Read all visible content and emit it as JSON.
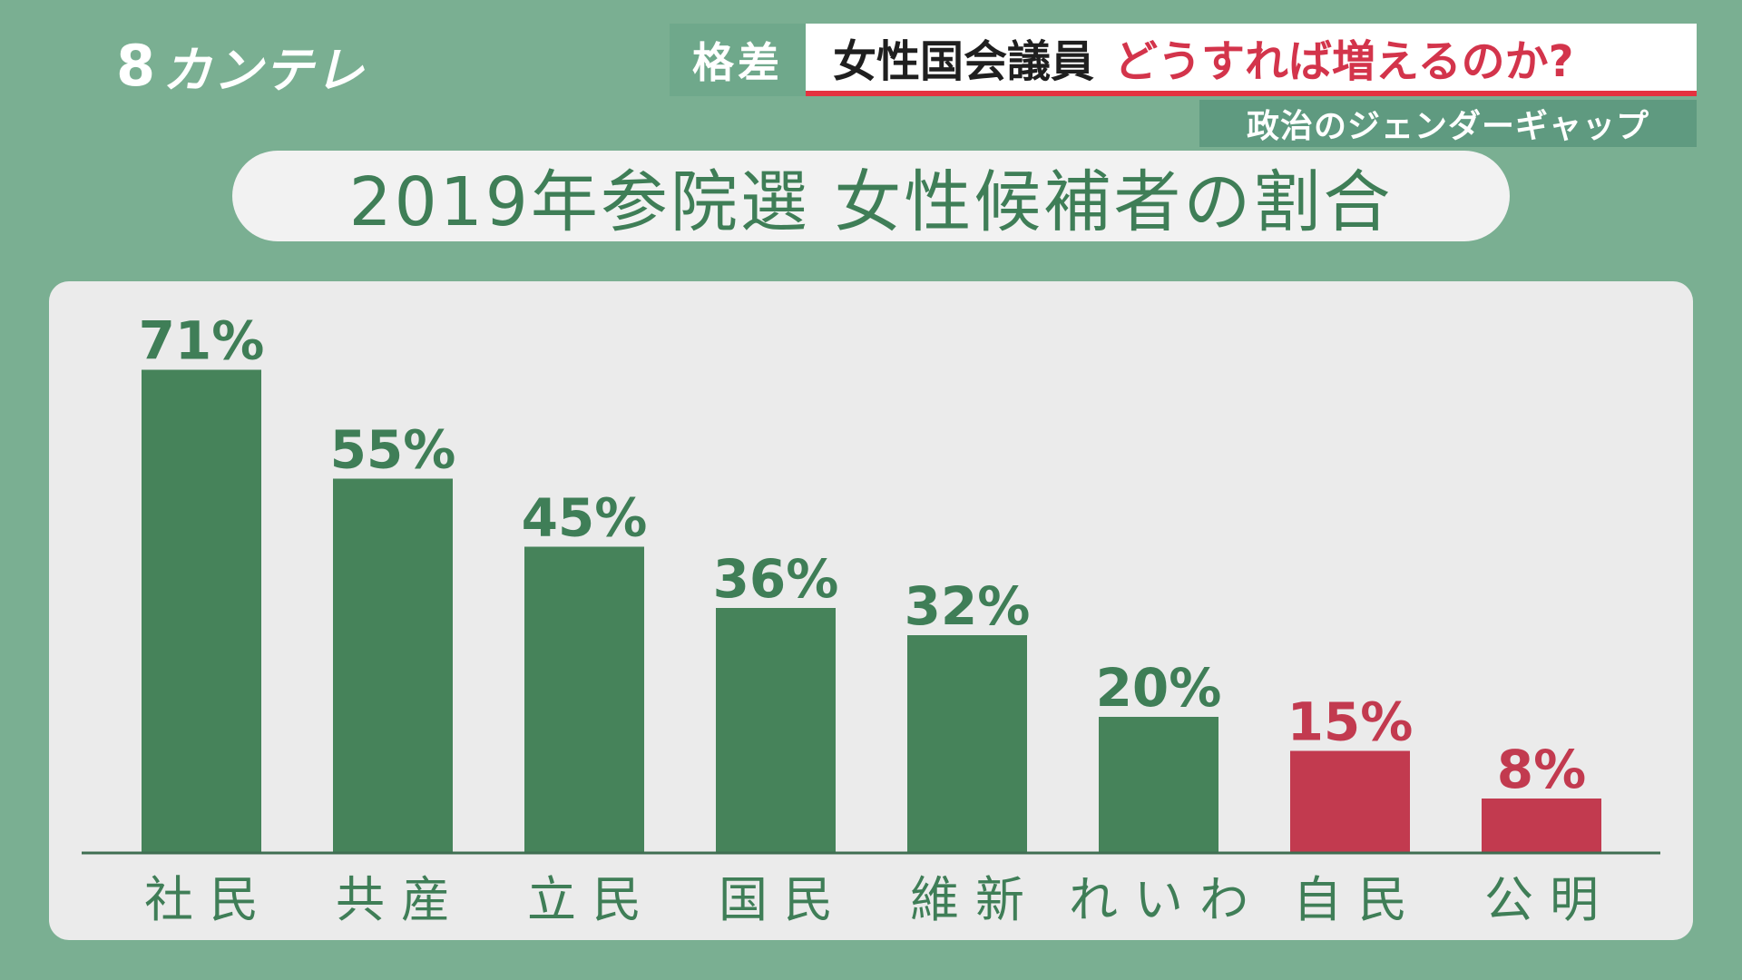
{
  "logo": {
    "mark": "8",
    "text": "カンテレ"
  },
  "banner": {
    "tag": "格差",
    "headline_dark": "女性国会議員",
    "headline_red": "どうすれば増えるのか?",
    "subtitle": "政治のジェンダーギャップ"
  },
  "colors": {
    "background": "#7aaf92",
    "bar_green": "#46835a",
    "bar_red": "#c23a4f",
    "label_green": "#3f7e57",
    "label_red": "#c23a4f"
  },
  "chart_data": {
    "type": "bar",
    "title": "2019年参院選 女性候補者の割合",
    "categories": [
      "社民",
      "共産",
      "立民",
      "国民",
      "維新",
      "れいわ",
      "自民",
      "公明"
    ],
    "values": [
      71,
      55,
      45,
      36,
      32,
      20,
      15,
      8
    ],
    "value_labels": [
      "71%",
      "55%",
      "45%",
      "36%",
      "32%",
      "20%",
      "15%",
      "8%"
    ],
    "highlight": [
      false,
      false,
      false,
      false,
      false,
      false,
      true,
      true
    ],
    "unit": "%",
    "ylim": [
      0,
      75
    ],
    "grid": false,
    "legend": "none"
  }
}
